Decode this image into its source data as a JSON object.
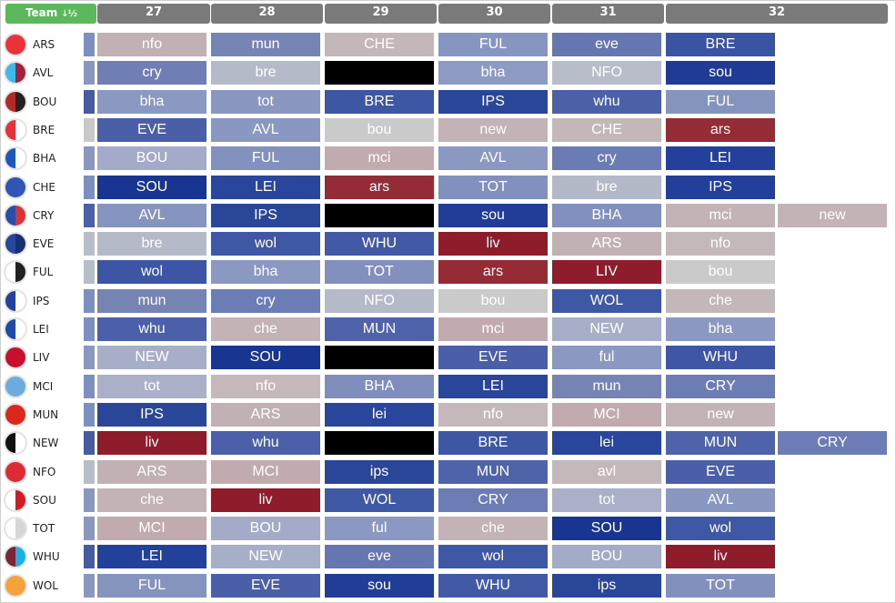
{
  "header": {
    "team_label": "Team",
    "sort_icon": "sort-numeric-icon",
    "gameweeks": [
      "27",
      "28",
      "29",
      "30",
      "31",
      "32"
    ]
  },
  "colors": {
    "header_bg": "#7a7a7a",
    "team_header_bg": "#5cb85c",
    "blank": "#000000"
  },
  "teams": [
    {
      "code": "ARS",
      "badge_colors": [
        "#e8333a",
        "#e8333a"
      ],
      "stub_color": "#7b8fc0",
      "fixtures": [
        [
          {
            "text": "nfo",
            "color": "#c1b1b5"
          }
        ],
        [
          {
            "text": "mun",
            "color": "#7684b4"
          }
        ],
        [
          {
            "text": "CHE",
            "color": "#c4b7ba"
          }
        ],
        [
          {
            "text": "FUL",
            "color": "#8796c0"
          }
        ],
        [
          {
            "text": "eve",
            "color": "#6676b0"
          }
        ],
        [
          {
            "text": "BRE",
            "color": "#3a54a3"
          }
        ]
      ]
    },
    {
      "code": "AVL",
      "badge_colors": [
        "#3fb9e8",
        "#a3213e"
      ],
      "stub_color": "#8a97bf",
      "fixtures": [
        [
          {
            "text": "cry",
            "color": "#6f7fb5"
          }
        ],
        [
          {
            "text": "bre",
            "color": "#b4bac8"
          }
        ],
        [
          {
            "text": "",
            "color": "#000000"
          }
        ],
        [
          {
            "text": "bha",
            "color": "#8d9bc3"
          }
        ],
        [
          {
            "text": "NFO",
            "color": "#b8bdca"
          }
        ],
        [
          {
            "text": "sou",
            "color": "#1f3b96"
          }
        ]
      ]
    },
    {
      "code": "BOU",
      "badge_colors": [
        "#b02a2a",
        "#222222"
      ],
      "stub_color": "#475ba3",
      "fixtures": [
        [
          {
            "text": "bha",
            "color": "#8a98c2"
          }
        ],
        [
          {
            "text": "tot",
            "color": "#8997c1"
          }
        ],
        [
          {
            "text": "BRE",
            "color": "#3e57a5"
          }
        ],
        [
          {
            "text": "IPS",
            "color": "#2a4699"
          }
        ],
        [
          {
            "text": "whu",
            "color": "#4b60a8"
          }
        ],
        [
          {
            "text": "FUL",
            "color": "#8593bf"
          }
        ]
      ]
    },
    {
      "code": "BRE",
      "badge_colors": [
        "#e0343a",
        "#ffffff"
      ],
      "stub_color": "#c9c9c9",
      "fixtures": [
        [
          {
            "text": "EVE",
            "color": "#4a5fa8"
          }
        ],
        [
          {
            "text": "AVL",
            "color": "#8a98c1"
          }
        ],
        [
          {
            "text": "bou",
            "color": "#cacaca"
          }
        ],
        [
          {
            "text": "new",
            "color": "#c3b2b6"
          }
        ],
        [
          {
            "text": "CHE",
            "color": "#c4b7ba"
          }
        ],
        [
          {
            "text": "ars",
            "color": "#942b35"
          }
        ]
      ]
    },
    {
      "code": "BHA",
      "badge_colors": [
        "#1d5ab8",
        "#ffffff"
      ],
      "stub_color": "#8a97bf",
      "fixtures": [
        [
          {
            "text": "BOU",
            "color": "#a3abc8"
          }
        ],
        [
          {
            "text": "FUL",
            "color": "#8391be"
          }
        ],
        [
          {
            "text": "mci",
            "color": "#c1abae"
          }
        ],
        [
          {
            "text": "AVL",
            "color": "#8a98c2"
          }
        ],
        [
          {
            "text": "cry",
            "color": "#6b7bb3"
          }
        ],
        [
          {
            "text": "LEI",
            "color": "#23409a"
          }
        ]
      ]
    },
    {
      "code": "CHE",
      "badge_colors": [
        "#2f55b5",
        "#2f55b5"
      ],
      "stub_color": "#7b8fc0",
      "fixtures": [
        [
          {
            "text": "SOU",
            "color": "#183591"
          }
        ],
        [
          {
            "text": "LEI",
            "color": "#29459c"
          }
        ],
        [
          {
            "text": "ars",
            "color": "#932c36"
          }
        ],
        [
          {
            "text": "TOT",
            "color": "#8290bd"
          }
        ],
        [
          {
            "text": "bre",
            "color": "#b3b9c8"
          }
        ],
        [
          {
            "text": "IPS",
            "color": "#223f99"
          }
        ]
      ]
    },
    {
      "code": "CRY",
      "badge_colors": [
        "#2b4ea8",
        "#d83438"
      ],
      "stub_color": "#4b60a8",
      "fixtures": [
        [
          {
            "text": "AVL",
            "color": "#8695c0"
          }
        ],
        [
          {
            "text": "IPS",
            "color": "#2a4699"
          }
        ],
        [
          {
            "text": "",
            "color": "#000000"
          }
        ],
        [
          {
            "text": "sou",
            "color": "#213d98"
          }
        ],
        [
          {
            "text": "BHA",
            "color": "#8190be"
          }
        ],
        [
          {
            "text": "mci",
            "color": "#c3b2b6",
            "text2": "new",
            "color2": "#c3b2b6"
          }
        ]
      ]
    },
    {
      "code": "EVE",
      "badge_colors": [
        "#27479d",
        "#1a2f70"
      ],
      "stub_color": "#b8bdca",
      "fixtures": [
        [
          {
            "text": "bre",
            "color": "#b4bac8"
          }
        ],
        [
          {
            "text": "wol",
            "color": "#3f58a6"
          }
        ],
        [
          {
            "text": "WHU",
            "color": "#4259a6"
          }
        ],
        [
          {
            "text": "liv",
            "color": "#8e1c2a"
          }
        ],
        [
          {
            "text": "ARS",
            "color": "#c1b1b5"
          }
        ],
        [
          {
            "text": "nfo",
            "color": "#c4b8bb"
          }
        ]
      ]
    },
    {
      "code": "FUL",
      "badge_colors": [
        "#ffffff",
        "#222222"
      ],
      "stub_color": "#b8bdca",
      "fixtures": [
        [
          {
            "text": "wol",
            "color": "#3c55a5"
          }
        ],
        [
          {
            "text": "bha",
            "color": "#8a98c2"
          }
        ],
        [
          {
            "text": "TOT",
            "color": "#8390be"
          }
        ],
        [
          {
            "text": "ars",
            "color": "#942b35"
          }
        ],
        [
          {
            "text": "LIV",
            "color": "#8e1c2a"
          }
        ],
        [
          {
            "text": "bou",
            "color": "#cacaca"
          }
        ]
      ]
    },
    {
      "code": "IPS",
      "badge_colors": [
        "#23429b",
        "#ffffff"
      ],
      "stub_color": "#7b8fc0",
      "fixtures": [
        [
          {
            "text": "mun",
            "color": "#7684b4"
          }
        ],
        [
          {
            "text": "cry",
            "color": "#6c7cb4"
          }
        ],
        [
          {
            "text": "NFO",
            "color": "#b4bac8"
          }
        ],
        [
          {
            "text": "bou",
            "color": "#cacaca"
          }
        ],
        [
          {
            "text": "WOL",
            "color": "#3e58a6"
          }
        ],
        [
          {
            "text": "che",
            "color": "#c4b7ba"
          }
        ]
      ]
    },
    {
      "code": "LEI",
      "badge_colors": [
        "#1f4aa6",
        "#ffffff"
      ],
      "stub_color": "#7b8fc0",
      "fixtures": [
        [
          {
            "text": "whu",
            "color": "#4b60a8"
          }
        ],
        [
          {
            "text": "che",
            "color": "#c3b2b6"
          }
        ],
        [
          {
            "text": "MUN",
            "color": "#4e63a9"
          }
        ],
        [
          {
            "text": "mci",
            "color": "#c1abae"
          }
        ],
        [
          {
            "text": "NEW",
            "color": "#a7afc8"
          }
        ],
        [
          {
            "text": "bha",
            "color": "#8a98c2"
          }
        ]
      ]
    },
    {
      "code": "LIV",
      "badge_colors": [
        "#c8102e",
        "#c8102e"
      ],
      "stub_color": "#8a97bf",
      "fixtures": [
        [
          {
            "text": "NEW",
            "color": "#a7afc8"
          }
        ],
        [
          {
            "text": "SOU",
            "color": "#183591"
          }
        ],
        [
          {
            "text": "",
            "color": "#000000"
          }
        ],
        [
          {
            "text": "EVE",
            "color": "#4a5fa8"
          }
        ],
        [
          {
            "text": "ful",
            "color": "#8a98c2"
          }
        ],
        [
          {
            "text": "WHU",
            "color": "#3e56a5"
          }
        ]
      ]
    },
    {
      "code": "MCI",
      "badge_colors": [
        "#6cabdd",
        "#6cabdd"
      ],
      "stub_color": "#7b8fc0",
      "fixtures": [
        [
          {
            "text": "tot",
            "color": "#a9b0c8"
          }
        ],
        [
          {
            "text": "nfo",
            "color": "#c4b8bb"
          }
        ],
        [
          {
            "text": "BHA",
            "color": "#7f8ebd"
          }
        ],
        [
          {
            "text": "LEI",
            "color": "#2a4699"
          }
        ],
        [
          {
            "text": "mun",
            "color": "#7684b4"
          }
        ],
        [
          {
            "text": "CRY",
            "color": "#6c7cb4"
          }
        ]
      ]
    },
    {
      "code": "MUN",
      "badge_colors": [
        "#da291c",
        "#da291c"
      ],
      "stub_color": "#7b8fc0",
      "fixtures": [
        [
          {
            "text": "IPS",
            "color": "#2a4699"
          }
        ],
        [
          {
            "text": "ARS",
            "color": "#c1b1b5"
          }
        ],
        [
          {
            "text": "lei",
            "color": "#29459c"
          }
        ],
        [
          {
            "text": "nfo",
            "color": "#c4b8bb"
          }
        ],
        [
          {
            "text": "MCI",
            "color": "#c1abae"
          }
        ],
        [
          {
            "text": "new",
            "color": "#c3b2b6"
          }
        ]
      ]
    },
    {
      "code": "NEW",
      "badge_colors": [
        "#111111",
        "#ffffff"
      ],
      "stub_color": "#475ba3",
      "fixtures": [
        [
          {
            "text": "liv",
            "color": "#8e1c2a"
          }
        ],
        [
          {
            "text": "whu",
            "color": "#4b60a8"
          }
        ],
        [
          {
            "text": "",
            "color": "#000000"
          }
        ],
        [
          {
            "text": "BRE",
            "color": "#3e57a5"
          }
        ],
        [
          {
            "text": "lei",
            "color": "#29459c"
          }
        ],
        [
          {
            "text": "MUN",
            "color": "#4e63a9",
            "text2": "CRY",
            "color2": "#6c7cb4"
          }
        ]
      ]
    },
    {
      "code": "NFO",
      "badge_colors": [
        "#dd2b34",
        "#dd2b34"
      ],
      "stub_color": "#b8bdca",
      "fixtures": [
        [
          {
            "text": "ARS",
            "color": "#c1b1b5"
          }
        ],
        [
          {
            "text": "MCI",
            "color": "#c1abae"
          }
        ],
        [
          {
            "text": "ips",
            "color": "#2a4699"
          }
        ],
        [
          {
            "text": "MUN",
            "color": "#4e63a9"
          }
        ],
        [
          {
            "text": "avl",
            "color": "#c4b8bb"
          }
        ],
        [
          {
            "text": "EVE",
            "color": "#4a5fa8"
          }
        ]
      ]
    },
    {
      "code": "SOU",
      "badge_colors": [
        "#ffffff",
        "#d71920"
      ],
      "stub_color": "#8a97bf",
      "fixtures": [
        [
          {
            "text": "che",
            "color": "#c3b2b6"
          }
        ],
        [
          {
            "text": "liv",
            "color": "#8e1c2a"
          }
        ],
        [
          {
            "text": "WOL",
            "color": "#3e58a6"
          }
        ],
        [
          {
            "text": "CRY",
            "color": "#6c7cb4"
          }
        ],
        [
          {
            "text": "tot",
            "color": "#a9b0c8"
          }
        ],
        [
          {
            "text": "AVL",
            "color": "#8a98c1"
          }
        ]
      ]
    },
    {
      "code": "TOT",
      "badge_colors": [
        "#ffffff",
        "#d6d6d6"
      ],
      "stub_color": "#8a97bf",
      "fixtures": [
        [
          {
            "text": "MCI",
            "color": "#c1abae"
          }
        ],
        [
          {
            "text": "BOU",
            "color": "#a3abc8"
          }
        ],
        [
          {
            "text": "ful",
            "color": "#8a98c2"
          }
        ],
        [
          {
            "text": "che",
            "color": "#c3b2b6"
          }
        ],
        [
          {
            "text": "SOU",
            "color": "#183591"
          }
        ],
        [
          {
            "text": "wol",
            "color": "#3f58a6"
          }
        ]
      ]
    },
    {
      "code": "WHU",
      "badge_colors": [
        "#7a263a",
        "#1bb1e7"
      ],
      "stub_color": "#475ba3",
      "fixtures": [
        [
          {
            "text": "LEI",
            "color": "#23409a"
          }
        ],
        [
          {
            "text": "NEW",
            "color": "#a7afc8"
          }
        ],
        [
          {
            "text": "eve",
            "color": "#6676b0"
          }
        ],
        [
          {
            "text": "wol",
            "color": "#3f58a6"
          }
        ],
        [
          {
            "text": "BOU",
            "color": "#a3abc8"
          }
        ],
        [
          {
            "text": "liv",
            "color": "#8e1c2a"
          }
        ]
      ]
    },
    {
      "code": "WOL",
      "badge_colors": [
        "#f4a23a",
        "#f4a23a"
      ],
      "stub_color": "#8a97bf",
      "fixtures": [
        [
          {
            "text": "FUL",
            "color": "#8593bf"
          }
        ],
        [
          {
            "text": "EVE",
            "color": "#4a5fa8"
          }
        ],
        [
          {
            "text": "sou",
            "color": "#213d98"
          }
        ],
        [
          {
            "text": "WHU",
            "color": "#4259a6"
          }
        ],
        [
          {
            "text": "ips",
            "color": "#2a4699"
          }
        ],
        [
          {
            "text": "TOT",
            "color": "#8290bd"
          }
        ]
      ]
    }
  ]
}
